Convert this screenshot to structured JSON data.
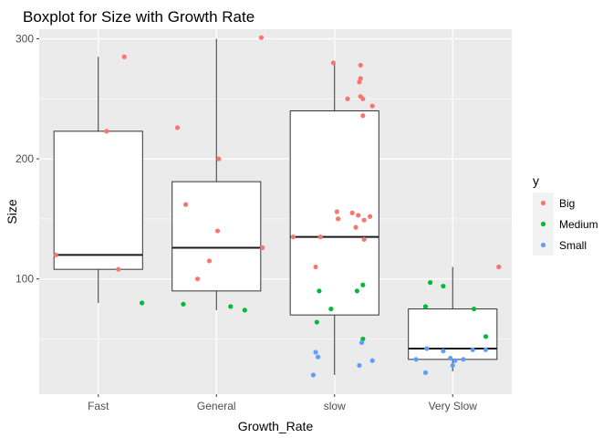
{
  "chart_data": {
    "type": "boxplot",
    "title": "Boxplot for Size with Growth Rate",
    "xlabel": "Growth_Rate",
    "ylabel": "Size",
    "categories": [
      "Fast",
      "General",
      "slow",
      "Very Slow"
    ],
    "yticks": [
      100,
      200,
      300
    ],
    "ylim": [
      4,
      308
    ],
    "grid": true,
    "legend": {
      "title": "y",
      "position": "right",
      "entries": [
        {
          "label": "Big",
          "color": "#F8766D"
        },
        {
          "label": "Medium",
          "color": "#00BA38"
        },
        {
          "label": "Small",
          "color": "#619CFF"
        }
      ]
    },
    "boxes": [
      {
        "category": "Fast",
        "lower_whisker": 80,
        "q1": 108,
        "median": 120,
        "q3": 223,
        "upper_whisker": 285
      },
      {
        "category": "General",
        "lower_whisker": 74,
        "q1": 90,
        "median": 126,
        "q3": 181,
        "upper_whisker": 300
      },
      {
        "category": "slow",
        "lower_whisker": 20,
        "q1": 70,
        "median": 135,
        "q3": 240,
        "upper_whisker": 280
      },
      {
        "category": "Very Slow",
        "lower_whisker": 23,
        "q1": 33,
        "median": 42,
        "q3": 75,
        "upper_whisker": 110
      }
    ],
    "points": [
      {
        "category": "Fast",
        "jitter": -0.36,
        "y": 120,
        "group": "Big"
      },
      {
        "category": "Fast",
        "jitter": 0.22,
        "y": 285,
        "group": "Big"
      },
      {
        "category": "Fast",
        "jitter": 0.07,
        "y": 223,
        "group": "Big"
      },
      {
        "category": "Fast",
        "jitter": 0.17,
        "y": 108,
        "group": "Big"
      },
      {
        "category": "Fast",
        "jitter": 0.37,
        "y": 80,
        "group": "Medium"
      },
      {
        "category": "General",
        "jitter": -0.33,
        "y": 226,
        "group": "Big"
      },
      {
        "category": "General",
        "jitter": -0.26,
        "y": 162,
        "group": "Big"
      },
      {
        "category": "General",
        "jitter": 0.02,
        "y": 200,
        "group": "Big"
      },
      {
        "category": "General",
        "jitter": 0.01,
        "y": 140,
        "group": "Big"
      },
      {
        "category": "General",
        "jitter": -0.06,
        "y": 115,
        "group": "Big"
      },
      {
        "category": "General",
        "jitter": -0.16,
        "y": 100,
        "group": "Big"
      },
      {
        "category": "General",
        "jitter": 0.38,
        "y": 301,
        "group": "Big"
      },
      {
        "category": "General",
        "jitter": 0.39,
        "y": 126,
        "group": "Big"
      },
      {
        "category": "General",
        "jitter": -0.28,
        "y": 79,
        "group": "Medium"
      },
      {
        "category": "General",
        "jitter": 0.12,
        "y": 77,
        "group": "Medium"
      },
      {
        "category": "General",
        "jitter": 0.24,
        "y": 74,
        "group": "Medium"
      },
      {
        "category": "slow",
        "jitter": -0.01,
        "y": 280,
        "group": "Big"
      },
      {
        "category": "slow",
        "jitter": 0.22,
        "y": 278,
        "group": "Big"
      },
      {
        "category": "slow",
        "jitter": 0.22,
        "y": 267,
        "group": "Big"
      },
      {
        "category": "slow",
        "jitter": 0.21,
        "y": 264,
        "group": "Big"
      },
      {
        "category": "slow",
        "jitter": 0.22,
        "y": 252,
        "group": "Big"
      },
      {
        "category": "slow",
        "jitter": 0.24,
        "y": 250,
        "group": "Big"
      },
      {
        "category": "slow",
        "jitter": 0.11,
        "y": 250,
        "group": "Big"
      },
      {
        "category": "slow",
        "jitter": 0.32,
        "y": 244,
        "group": "Big"
      },
      {
        "category": "slow",
        "jitter": 0.24,
        "y": 236,
        "group": "Big"
      },
      {
        "category": "slow",
        "jitter": 0.02,
        "y": 156,
        "group": "Big"
      },
      {
        "category": "slow",
        "jitter": 0.15,
        "y": 155,
        "group": "Big"
      },
      {
        "category": "slow",
        "jitter": 0.03,
        "y": 150,
        "group": "Big"
      },
      {
        "category": "slow",
        "jitter": 0.2,
        "y": 153,
        "group": "Big"
      },
      {
        "category": "slow",
        "jitter": 0.3,
        "y": 152,
        "group": "Big"
      },
      {
        "category": "slow",
        "jitter": 0.25,
        "y": 149,
        "group": "Big"
      },
      {
        "category": "slow",
        "jitter": 0.18,
        "y": 143,
        "group": "Big"
      },
      {
        "category": "slow",
        "jitter": -0.35,
        "y": 135,
        "group": "Big"
      },
      {
        "category": "slow",
        "jitter": -0.12,
        "y": 135,
        "group": "Big"
      },
      {
        "category": "slow",
        "jitter": 0.25,
        "y": 133,
        "group": "Big"
      },
      {
        "category": "slow",
        "jitter": -0.16,
        "y": 110,
        "group": "Big"
      },
      {
        "category": "slow",
        "jitter": -0.13,
        "y": 90,
        "group": "Medium"
      },
      {
        "category": "slow",
        "jitter": 0.24,
        "y": 95,
        "group": "Medium"
      },
      {
        "category": "slow",
        "jitter": 0.19,
        "y": 90,
        "group": "Medium"
      },
      {
        "category": "slow",
        "jitter": -0.03,
        "y": 75,
        "group": "Medium"
      },
      {
        "category": "slow",
        "jitter": -0.15,
        "y": 64,
        "group": "Medium"
      },
      {
        "category": "slow",
        "jitter": 0.24,
        "y": 50,
        "group": "Medium"
      },
      {
        "category": "slow",
        "jitter": 0.23,
        "y": 47,
        "group": "Small"
      },
      {
        "category": "slow",
        "jitter": -0.16,
        "y": 39,
        "group": "Small"
      },
      {
        "category": "slow",
        "jitter": -0.14,
        "y": 35,
        "group": "Small"
      },
      {
        "category": "slow",
        "jitter": 0.32,
        "y": 32,
        "group": "Small"
      },
      {
        "category": "slow",
        "jitter": 0.21,
        "y": 28,
        "group": "Small"
      },
      {
        "category": "slow",
        "jitter": -0.18,
        "y": 20,
        "group": "Small"
      },
      {
        "category": "Very Slow",
        "jitter": -0.19,
        "y": 97,
        "group": "Medium"
      },
      {
        "category": "Very Slow",
        "jitter": 0.18,
        "y": 75,
        "group": "Medium"
      },
      {
        "category": "Very Slow",
        "jitter": -0.08,
        "y": 94,
        "group": "Medium"
      },
      {
        "category": "Very Slow",
        "jitter": -0.23,
        "y": 77,
        "group": "Medium"
      },
      {
        "category": "Very Slow",
        "jitter": 0.28,
        "y": 52,
        "group": "Medium"
      },
      {
        "category": "Very Slow",
        "jitter": 0.39,
        "y": 110,
        "group": "Big"
      },
      {
        "category": "Very Slow",
        "jitter": -0.31,
        "y": 33,
        "group": "Small"
      },
      {
        "category": "Very Slow",
        "jitter": -0.22,
        "y": 42,
        "group": "Small"
      },
      {
        "category": "Very Slow",
        "jitter": -0.08,
        "y": 40,
        "group": "Small"
      },
      {
        "category": "Very Slow",
        "jitter": 0.17,
        "y": 41,
        "group": "Small"
      },
      {
        "category": "Very Slow",
        "jitter": 0.28,
        "y": 41,
        "group": "Small"
      },
      {
        "category": "Very Slow",
        "jitter": -0.02,
        "y": 34,
        "group": "Small"
      },
      {
        "category": "Very Slow",
        "jitter": 0.02,
        "y": 32,
        "group": "Small"
      },
      {
        "category": "Very Slow",
        "jitter": 0.09,
        "y": 33,
        "group": "Small"
      },
      {
        "category": "Very Slow",
        "jitter": -0.23,
        "y": 22,
        "group": "Small"
      },
      {
        "category": "Very Slow",
        "jitter": 0.0,
        "y": 28,
        "group": "Small"
      }
    ]
  }
}
